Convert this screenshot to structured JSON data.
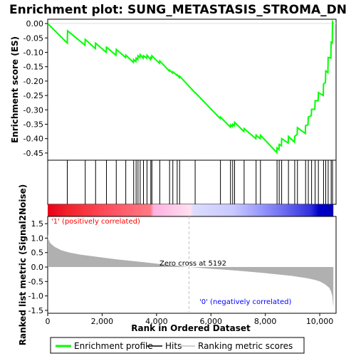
{
  "chart_data": {
    "type": "line",
    "title": "Enrichment plot: SUNG_METASTASIS_STROMA_DN",
    "xlabel": "Rank in Ordered Dataset",
    "ylabel_top": "Enrichment score (ES)",
    "ylabel_bottom": "Ranked list metric (Signal2Noise)",
    "x_ticks": [
      0,
      2000,
      4000,
      6000,
      8000,
      10000
    ],
    "x_tick_labels": [
      "0",
      "2,000",
      "4,000",
      "6,000",
      "8,000",
      "10,000"
    ],
    "xlim": [
      0,
      10600
    ],
    "es_yticks": [
      0.0,
      -0.05,
      -0.1,
      -0.15,
      -0.2,
      -0.25,
      -0.3,
      -0.35,
      -0.4,
      -0.45
    ],
    "es_ytick_labels": [
      "0.00",
      "-0.05",
      "-0.10",
      "-0.15",
      "-0.20",
      "-0.25",
      "-0.30",
      "-0.35",
      "-0.40",
      "-0.45"
    ],
    "es_ylim": [
      -0.475,
      0.015
    ],
    "metric_yticks": [
      1.5,
      1.0,
      0.5,
      0.0,
      -0.5,
      -1.0,
      -1.5
    ],
    "metric_ytick_labels": [
      "1.5",
      "1.0",
      "0.5",
      "0.0",
      "-0.5",
      "-1.0",
      "-1.5"
    ],
    "metric_ylim": [
      -1.6,
      1.75
    ],
    "total_ranks": 10500,
    "zero_cross": 5192,
    "zero_cross_label": "Zero cross at 5192",
    "pos_label": "'1' (positively correlated)",
    "neg_label": "'0' (negatively correlated)",
    "colors": {
      "enrichment_line": "#00ff00",
      "hits": "#000000",
      "metric_fill": "#b0b0b0",
      "pos_label": "#ff0000",
      "neg_label": "#0000ff",
      "zero_line": "#c0c0c0"
    },
    "hits": [
      720,
      1380,
      1760,
      2160,
      2520,
      2870,
      3160,
      3250,
      3320,
      3400,
      3520,
      3650,
      3790,
      3830,
      4120,
      4480,
      4600,
      4760,
      4850,
      5420,
      6350,
      6720,
      6800,
      6870,
      7220,
      7660,
      7820,
      8430,
      8510,
      8600,
      8850,
      9080,
      9180,
      9480,
      9580,
      9700,
      9830,
      9950,
      10140,
      10220,
      10310,
      10420,
      10470
    ],
    "es_points": [
      [
        0,
        0.0
      ],
      [
        720,
        -0.068
      ],
      [
        730,
        -0.025
      ],
      [
        1370,
        -0.075
      ],
      [
        1380,
        -0.055
      ],
      [
        1750,
        -0.087
      ],
      [
        1760,
        -0.068
      ],
      [
        2150,
        -0.1
      ],
      [
        2160,
        -0.082
      ],
      [
        2510,
        -0.11
      ],
      [
        2520,
        -0.09
      ],
      [
        2860,
        -0.118
      ],
      [
        2870,
        -0.11
      ],
      [
        3150,
        -0.135
      ],
      [
        3160,
        -0.125
      ],
      [
        3240,
        -0.132
      ],
      [
        3250,
        -0.12
      ],
      [
        3310,
        -0.125
      ],
      [
        3320,
        -0.112
      ],
      [
        3390,
        -0.118
      ],
      [
        3400,
        -0.108
      ],
      [
        3510,
        -0.12
      ],
      [
        3520,
        -0.112
      ],
      [
        3640,
        -0.12
      ],
      [
        3650,
        -0.11
      ],
      [
        3780,
        -0.125
      ],
      [
        3790,
        -0.118
      ],
      [
        3820,
        -0.12
      ],
      [
        3830,
        -0.112
      ],
      [
        4110,
        -0.138
      ],
      [
        4120,
        -0.13
      ],
      [
        4470,
        -0.165
      ],
      [
        4480,
        -0.162
      ],
      [
        4590,
        -0.172
      ],
      [
        4600,
        -0.168
      ],
      [
        4750,
        -0.18
      ],
      [
        4760,
        -0.178
      ],
      [
        4840,
        -0.188
      ],
      [
        4850,
        -0.183
      ],
      [
        5410,
        -0.24
      ],
      [
        5420,
        -0.24
      ],
      [
        6340,
        -0.33
      ],
      [
        6350,
        -0.325
      ],
      [
        6710,
        -0.36
      ],
      [
        6720,
        -0.352
      ],
      [
        6790,
        -0.358
      ],
      [
        6800,
        -0.35
      ],
      [
        6860,
        -0.355
      ],
      [
        6870,
        -0.343
      ],
      [
        7210,
        -0.375
      ],
      [
        7220,
        -0.365
      ],
      [
        7650,
        -0.4
      ],
      [
        7660,
        -0.388
      ],
      [
        7810,
        -0.4
      ],
      [
        7820,
        -0.388
      ],
      [
        8420,
        -0.448
      ],
      [
        8430,
        -0.432
      ],
      [
        8500,
        -0.438
      ],
      [
        8510,
        -0.42
      ],
      [
        8590,
        -0.425
      ],
      [
        8600,
        -0.4
      ],
      [
        8840,
        -0.415
      ],
      [
        8850,
        -0.392
      ],
      [
        9070,
        -0.412
      ],
      [
        9080,
        -0.392
      ],
      [
        9170,
        -0.385
      ],
      [
        9180,
        -0.362
      ],
      [
        9470,
        -0.382
      ],
      [
        9480,
        -0.355
      ],
      [
        9570,
        -0.352
      ],
      [
        9580,
        -0.325
      ],
      [
        9690,
        -0.32
      ],
      [
        9700,
        -0.298
      ],
      [
        9820,
        -0.298
      ],
      [
        9830,
        -0.268
      ],
      [
        9940,
        -0.268
      ],
      [
        9950,
        -0.24
      ],
      [
        10130,
        -0.25
      ],
      [
        10140,
        -0.21
      ],
      [
        10210,
        -0.205
      ],
      [
        10220,
        -0.165
      ],
      [
        10300,
        -0.17
      ],
      [
        10310,
        -0.118
      ],
      [
        10410,
        -0.12
      ],
      [
        10420,
        -0.065
      ],
      [
        10460,
        -0.068
      ],
      [
        10470,
        0.005
      ],
      [
        10500,
        0.0
      ]
    ],
    "metric_points": [
      [
        0,
        1.15
      ],
      [
        30,
        0.95
      ],
      [
        100,
        0.82
      ],
      [
        250,
        0.7
      ],
      [
        500,
        0.58
      ],
      [
        800,
        0.5
      ],
      [
        1200,
        0.43
      ],
      [
        1600,
        0.38
      ],
      [
        2000,
        0.33
      ],
      [
        2500,
        0.27
      ],
      [
        3000,
        0.22
      ],
      [
        3500,
        0.17
      ],
      [
        4000,
        0.12
      ],
      [
        4500,
        0.07
      ],
      [
        5000,
        0.02
      ],
      [
        5192,
        0.0
      ],
      [
        5600,
        -0.03
      ],
      [
        6000,
        -0.06
      ],
      [
        6500,
        -0.09
      ],
      [
        7000,
        -0.13
      ],
      [
        7500,
        -0.17
      ],
      [
        8000,
        -0.21
      ],
      [
        8500,
        -0.26
      ],
      [
        9000,
        -0.31
      ],
      [
        9500,
        -0.38
      ],
      [
        9800,
        -0.44
      ],
      [
        10000,
        -0.5
      ],
      [
        10200,
        -0.6
      ],
      [
        10350,
        -0.72
      ],
      [
        10420,
        -0.85
      ],
      [
        10460,
        -1.0
      ],
      [
        10480,
        -1.2
      ],
      [
        10500,
        -1.4
      ]
    ],
    "colorbar_stops": [
      [
        0.0,
        "#e8001a"
      ],
      [
        0.07,
        "#f0222a"
      ],
      [
        0.2,
        "#ff4a5a"
      ],
      [
        0.36,
        "#ff7a85"
      ],
      [
        0.37,
        "#ffb0e0"
      ],
      [
        0.5,
        "#ffe0f0"
      ],
      [
        0.51,
        "#dcdcff"
      ],
      [
        0.65,
        "#c8c8ff"
      ],
      [
        0.73,
        "#a0a0ff"
      ],
      [
        0.82,
        "#7070f0"
      ],
      [
        0.92,
        "#3030e0"
      ],
      [
        0.95,
        "#0000c8"
      ],
      [
        1.0,
        "#0000b8"
      ]
    ],
    "legend": [
      {
        "label": "Enrichment profile",
        "kind": "line",
        "color": "#00ff00"
      },
      {
        "label": "Hits",
        "kind": "line",
        "color": "#000000"
      },
      {
        "label": "Ranking metric scores",
        "kind": "line",
        "color": "#c0c0c0"
      }
    ]
  }
}
